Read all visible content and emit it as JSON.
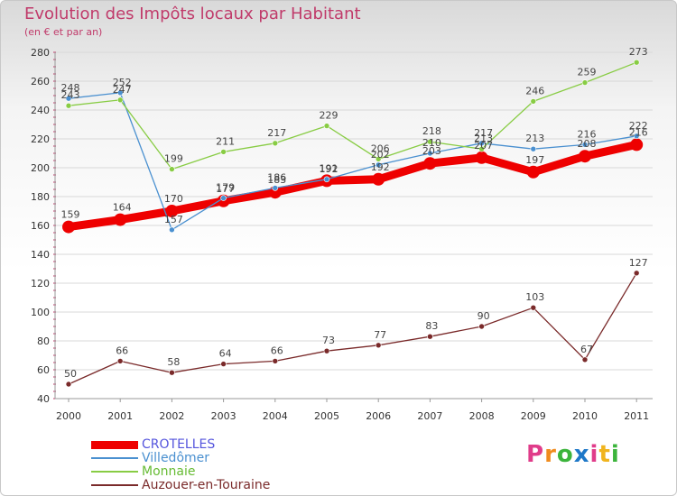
{
  "title": "Evolution des Impôts locaux par Habitant",
  "subtitle": "(en € et par an)",
  "logo": {
    "letters": [
      "P",
      "r",
      "o",
      "x",
      "i",
      "t",
      "i"
    ],
    "colors": [
      "#e03c8a",
      "#f08c1e",
      "#3cb43c",
      "#1e78c8",
      "#e03c8a",
      "#f0b41e",
      "#3cb43c"
    ]
  },
  "chart_data": {
    "type": "line",
    "title": "Evolution des Impôts locaux par Habitant",
    "subtitle": "(en € et par an)",
    "xlabel": "",
    "ylabel": "",
    "categories": [
      "2000",
      "2001",
      "2002",
      "2003",
      "2004",
      "2005",
      "2006",
      "2007",
      "2008",
      "2009",
      "2010",
      "2011"
    ],
    "ylim": [
      40,
      280
    ],
    "yticks": [
      "40",
      "60",
      "80",
      "100",
      "120",
      "140",
      "160",
      "180",
      "200",
      "220",
      "240",
      "260",
      "280"
    ],
    "grid": "horizontal",
    "legend_position": "bottom-left",
    "series": [
      {
        "name": "CROTELLES",
        "color": "#ee0000",
        "legend_color": "#5555dd",
        "values": [
          159,
          164,
          170,
          177,
          183,
          191,
          192,
          203,
          207,
          197,
          208,
          216
        ],
        "labels": [
          "159",
          "164",
          "170",
          "177",
          "183",
          "191",
          "192",
          "203",
          "207",
          "197",
          "208",
          "216"
        ]
      },
      {
        "name": "Villedômer",
        "color": "#4a90d0",
        "legend_color": "#4a90d0",
        "values": [
          248,
          252,
          157,
          179,
          186,
          192,
          202,
          210,
          217,
          213,
          216,
          222
        ],
        "labels": [
          "248",
          "252",
          "157",
          "179",
          "186",
          "192",
          "202",
          "210",
          "217",
          "213",
          "216",
          "222"
        ]
      },
      {
        "name": "Monnaie",
        "color": "#88cc44",
        "legend_color": "#66bb33",
        "values": [
          243,
          247,
          199,
          211,
          217,
          229,
          206,
          218,
          213,
          246,
          259,
          273
        ],
        "labels": [
          "243",
          "247",
          "199",
          "211",
          "217",
          "229",
          "206",
          "218",
          "213",
          "246",
          "259",
          "273"
        ]
      },
      {
        "name": "Auzouer-en-Touraine",
        "color": "#7a2a2a",
        "legend_color": "#7a2a2a",
        "values": [
          50,
          66,
          58,
          64,
          66,
          73,
          77,
          83,
          90,
          103,
          67,
          127
        ],
        "labels": [
          "50",
          "66",
          "58",
          "64",
          "66",
          "73",
          "77",
          "83",
          "90",
          "103",
          "67",
          "127"
        ]
      }
    ]
  }
}
